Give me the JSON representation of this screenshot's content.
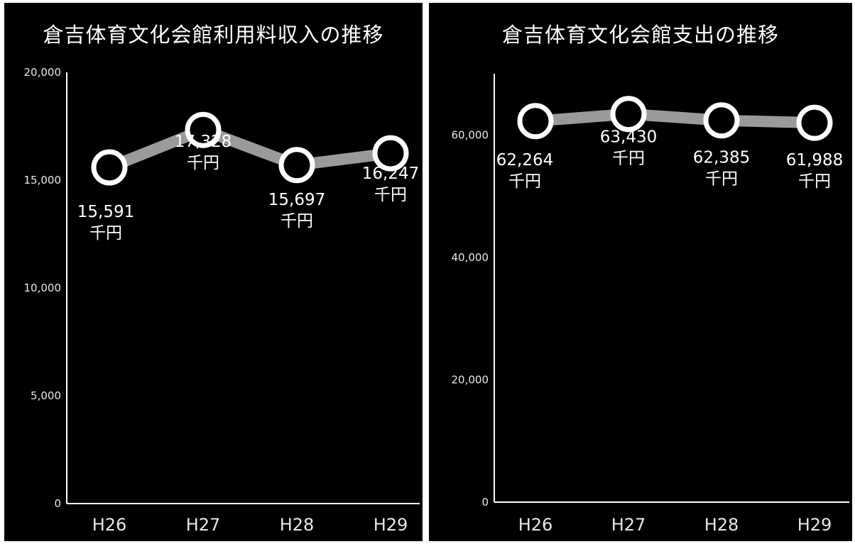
{
  "chart_data": [
    {
      "type": "line",
      "title": "倉吉体育文化会館利用料収入の推移",
      "categories": [
        "H26",
        "H27",
        "H28",
        "H29"
      ],
      "series": [
        {
          "values": [
            15591,
            17328,
            15697,
            16247
          ]
        }
      ],
      "data_labels": [
        "15,591",
        "17,328",
        "15,697",
        "16,247"
      ],
      "data_label_unit": "千円",
      "ylim": [
        0,
        20000
      ],
      "yticks": [
        0,
        5000,
        10000,
        15000,
        20000
      ],
      "ytick_labels": [
        "0",
        "5,000",
        "10,000",
        "15,000",
        "20,000"
      ],
      "xlabel": "",
      "ylabel": "",
      "grid": false,
      "legend": "none"
    },
    {
      "type": "line",
      "title": "倉吉体育文化会館支出の推移",
      "categories": [
        "H26",
        "H27",
        "H28",
        "H29"
      ],
      "series": [
        {
          "values": [
            62264,
            63430,
            62385,
            61988
          ]
        }
      ],
      "data_labels": [
        "62,264",
        "63,430",
        "62,385",
        "61,988"
      ],
      "data_label_unit": "千円",
      "ylim": [
        0,
        70000
      ],
      "yticks": [
        0,
        20000,
        40000,
        60000
      ],
      "ytick_labels": [
        "0",
        "20,000",
        "40,000",
        "60,000"
      ],
      "xlabel": "",
      "ylabel": "",
      "grid": false,
      "legend": "none"
    }
  ],
  "colors": {
    "background": "#000000",
    "marker_fill": "#000000",
    "marker_ring": "#ffffff",
    "line": "#9a9a9a",
    "axis": "#ffffff",
    "text": "#ffffff"
  }
}
